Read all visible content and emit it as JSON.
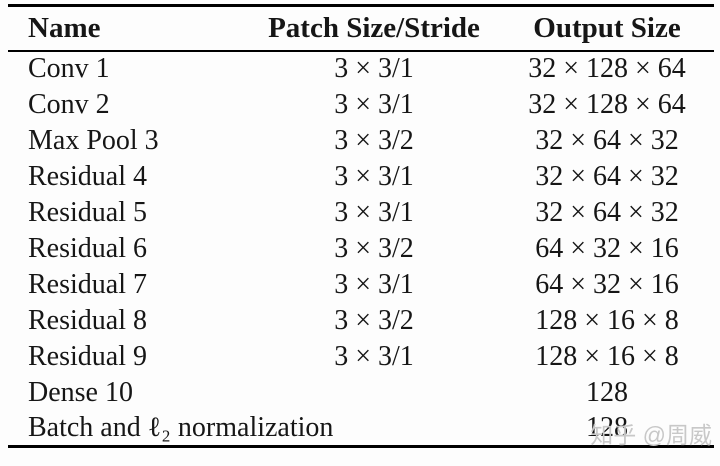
{
  "page": {
    "background": "#fdfdfd",
    "text_color": "#161616",
    "rule_color": "#000000"
  },
  "table": {
    "headers": {
      "name": "Name",
      "patch_size_stride": "Patch Size/Stride",
      "output_size": "Output Size"
    },
    "rows": [
      {
        "name": "Conv 1",
        "patch_size_stride": "3 × 3/1",
        "output_size": "32 × 128 × 64"
      },
      {
        "name": "Conv 2",
        "patch_size_stride": "3 × 3/1",
        "output_size": "32 × 128 × 64"
      },
      {
        "name": "Max Pool 3",
        "patch_size_stride": "3 × 3/2",
        "output_size": "32 × 64 × 32"
      },
      {
        "name": "Residual 4",
        "patch_size_stride": "3 × 3/1",
        "output_size": "32 × 64 × 32"
      },
      {
        "name": "Residual 5",
        "patch_size_stride": "3 × 3/1",
        "output_size": "32 × 64 × 32"
      },
      {
        "name": "Residual 6",
        "patch_size_stride": "3 × 3/2",
        "output_size": "64 × 32 × 16"
      },
      {
        "name": "Residual 7",
        "patch_size_stride": "3 × 3/1",
        "output_size": "64 × 32 × 16"
      },
      {
        "name": "Residual 8",
        "patch_size_stride": "3 × 3/2",
        "output_size": "128 × 16 × 8"
      },
      {
        "name": "Residual 9",
        "patch_size_stride": "3 × 3/1",
        "output_size": "128 × 16 × 8"
      },
      {
        "name": "Dense 10",
        "patch_size_stride": "",
        "output_size": "128"
      },
      {
        "name": "Batch and ℓ₂ normalization",
        "patch_size_stride": "",
        "output_size": "128"
      }
    ]
  },
  "watermark": {
    "text": "知乎 @周威",
    "color": "#c8c8c8"
  }
}
